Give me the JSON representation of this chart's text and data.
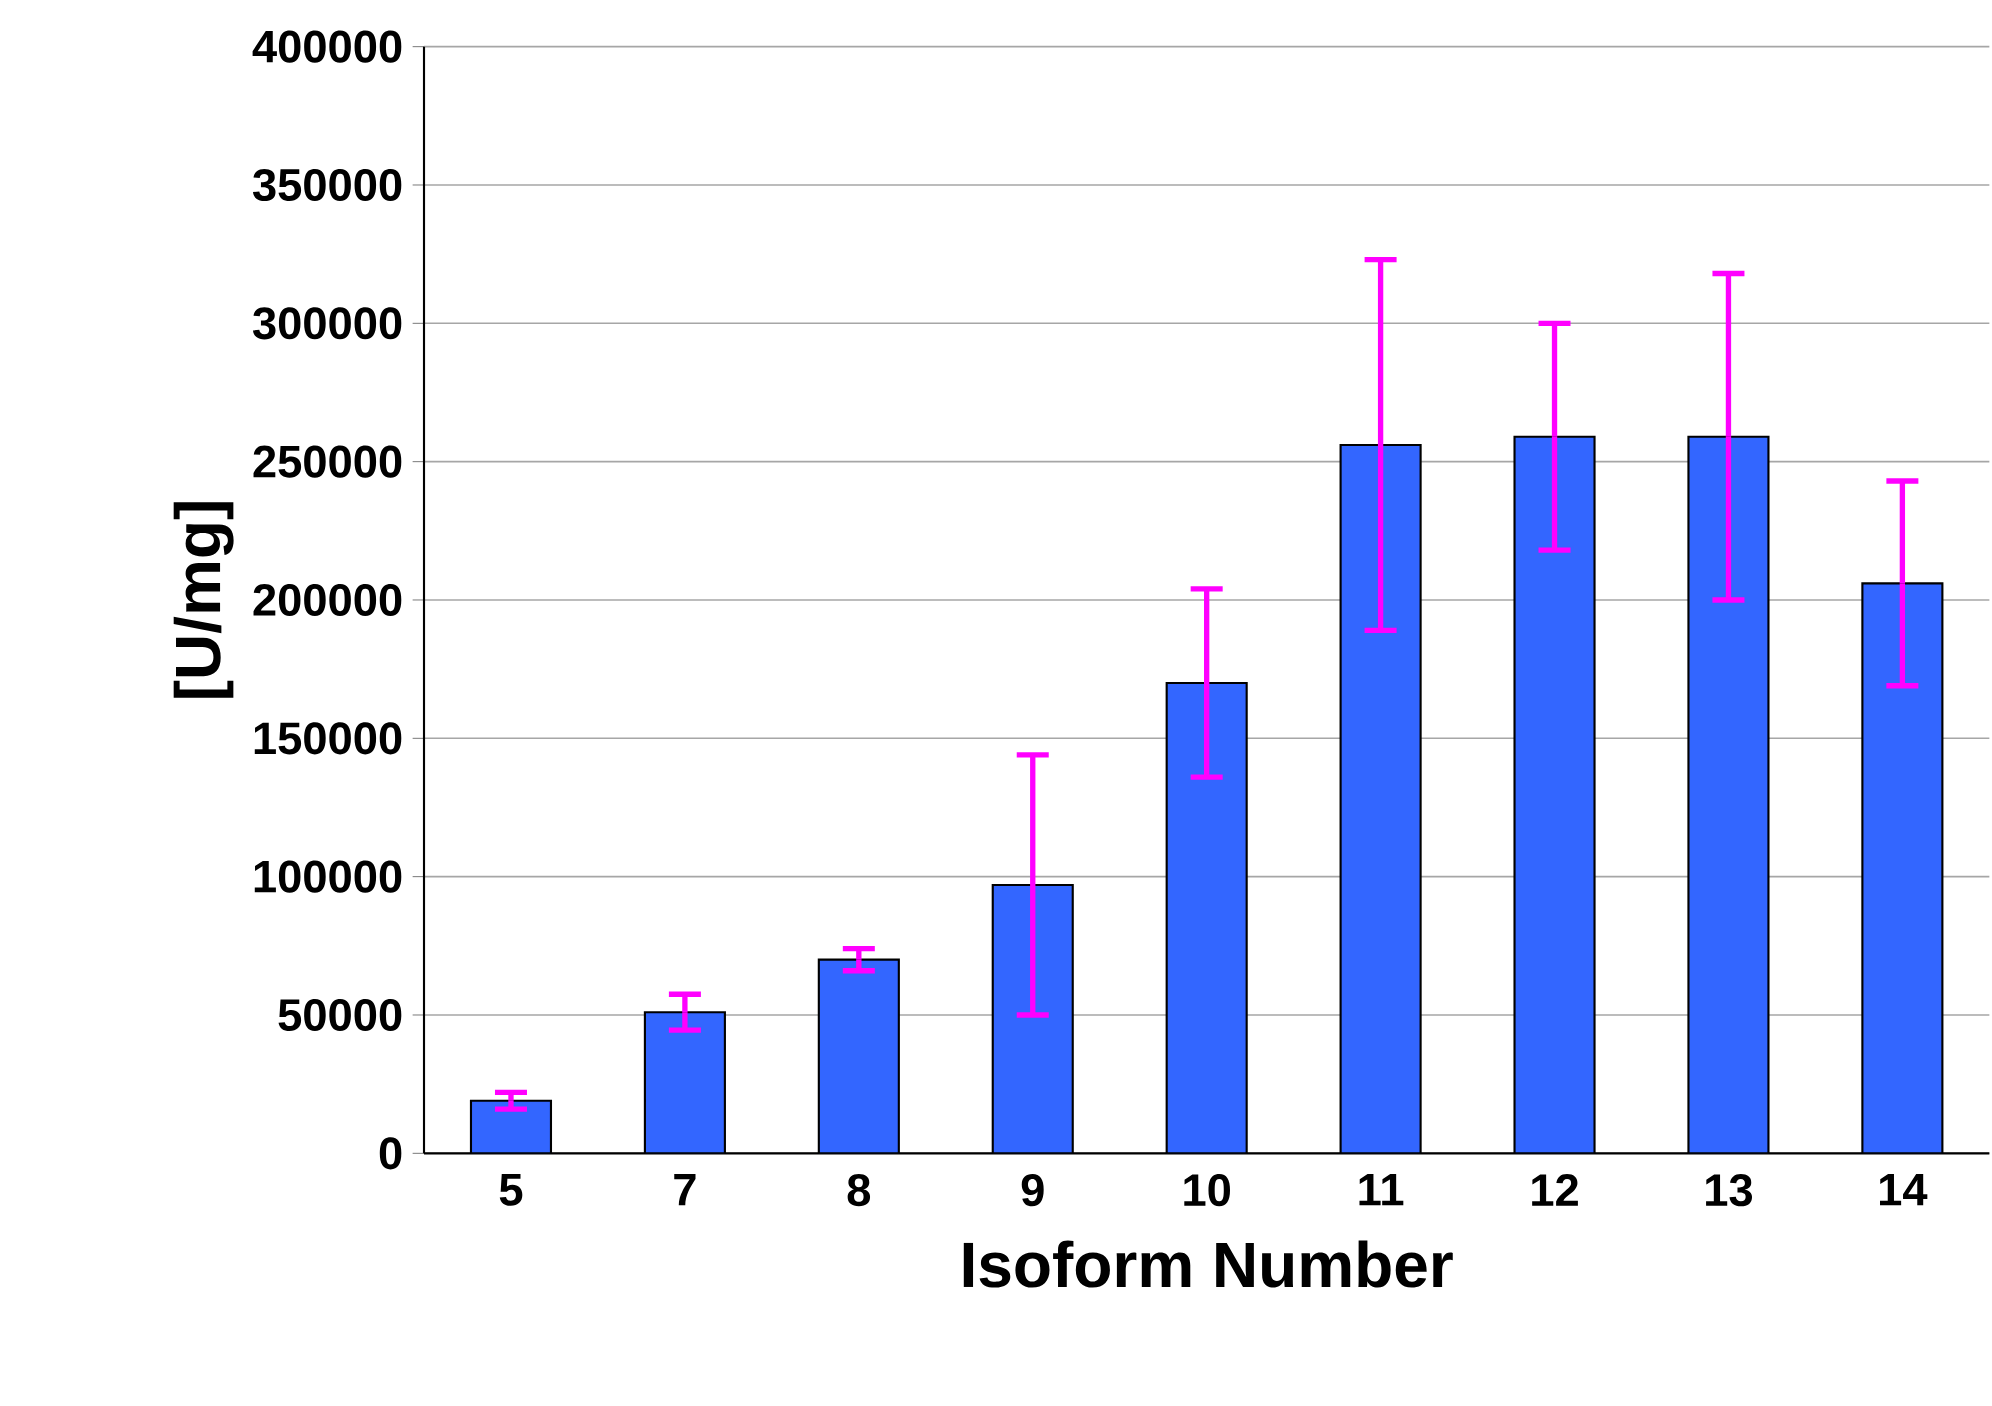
{
  "chart_data": {
    "type": "bar",
    "xlabel": "Isoform Number",
    "ylabel": "[U/mg]",
    "categories": [
      "5",
      "7",
      "8",
      "9",
      "10",
      "11",
      "12",
      "13",
      "14"
    ],
    "values": [
      19000,
      51000,
      70000,
      97000,
      170000,
      256000,
      259000,
      259000,
      206000
    ],
    "errors": [
      3000,
      6500,
      4000,
      47000,
      34000,
      67000,
      41000,
      59000,
      37000
    ],
    "color": "#3366ff",
    "ylim": [
      0,
      400000
    ],
    "yticks": [
      0,
      50000,
      100000,
      150000,
      200000,
      250000,
      300000,
      350000,
      400000
    ],
    "grid": "y"
  }
}
